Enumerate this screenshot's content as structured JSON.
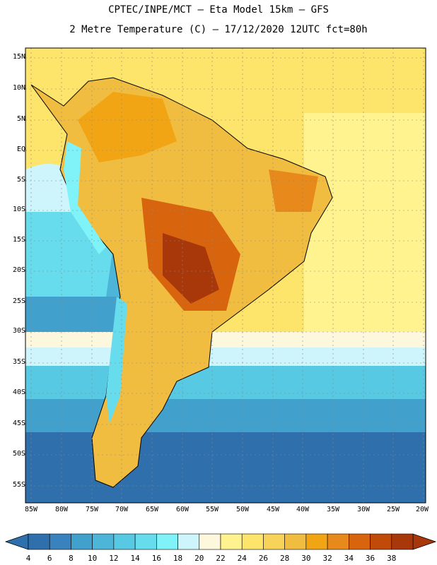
{
  "header": {
    "line1": "CPTEC/INPE/MCT –  Eta Model 15km – GFS",
    "line2": "2 Metre Temperature (C) – 17/12/2020 12UTC fct=80h"
  },
  "axes": {
    "lat_labels": [
      "15N",
      "10N",
      "5N",
      "EQ",
      "5S",
      "10S",
      "15S",
      "20S",
      "25S",
      "30S",
      "35S",
      "40S",
      "45S",
      "50S",
      "55S"
    ],
    "lon_labels": [
      "85W",
      "80W",
      "75W",
      "70W",
      "65W",
      "60W",
      "55W",
      "50W",
      "45W",
      "40W",
      "35W",
      "30W",
      "25W",
      "20W"
    ]
  },
  "colorbar": {
    "labels": [
      "4",
      "6",
      "8",
      "10",
      "12",
      "14",
      "16",
      "18",
      "20",
      "22",
      "24",
      "26",
      "28",
      "30",
      "32",
      "34",
      "36",
      "38"
    ],
    "colors": [
      "#2f6fab",
      "#3a82bd",
      "#42a0cc",
      "#4cb5d8",
      "#58c9e3",
      "#66dcec",
      "#7ff3f7",
      "#cdf5fb",
      "#fdf7dd",
      "#fef38f",
      "#fde46b",
      "#f8d35a",
      "#f0bd41",
      "#f2a514",
      "#e8891c",
      "#d9640e",
      "#c04a08",
      "#a8380a"
    ]
  }
}
